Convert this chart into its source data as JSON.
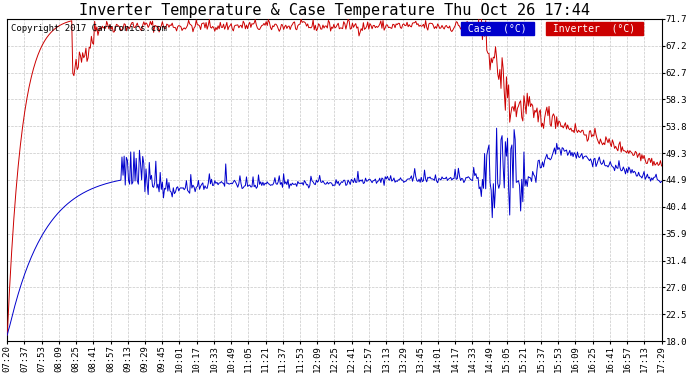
{
  "title": "Inverter Temperature & Case Temperature Thu Oct 26 17:44",
  "copyright": "Copyright 2017 Cartronics.com",
  "bg_color": "#ffffff",
  "plot_bg_color": "#ffffff",
  "grid_color": "#c8c8c8",
  "ylim": [
    18.0,
    71.7
  ],
  "yticks": [
    18.0,
    22.5,
    27.0,
    31.4,
    35.9,
    40.4,
    44.9,
    49.3,
    53.8,
    58.3,
    62.7,
    67.2,
    71.7
  ],
  "xtick_labels": [
    "07:20",
    "07:37",
    "07:53",
    "08:09",
    "08:25",
    "08:41",
    "08:57",
    "09:13",
    "09:29",
    "09:45",
    "10:01",
    "10:17",
    "10:33",
    "10:49",
    "11:05",
    "11:21",
    "11:37",
    "11:53",
    "12:09",
    "12:25",
    "12:41",
    "12:57",
    "13:13",
    "13:29",
    "13:45",
    "14:01",
    "14:17",
    "14:33",
    "14:49",
    "15:05",
    "15:21",
    "15:37",
    "15:53",
    "16:09",
    "16:25",
    "16:41",
    "16:57",
    "17:13",
    "17:29"
  ],
  "case_color": "#0000cc",
  "inverter_color": "#cc0000",
  "title_fontsize": 11,
  "axis_fontsize": 6.5,
  "copyright_fontsize": 6.5
}
